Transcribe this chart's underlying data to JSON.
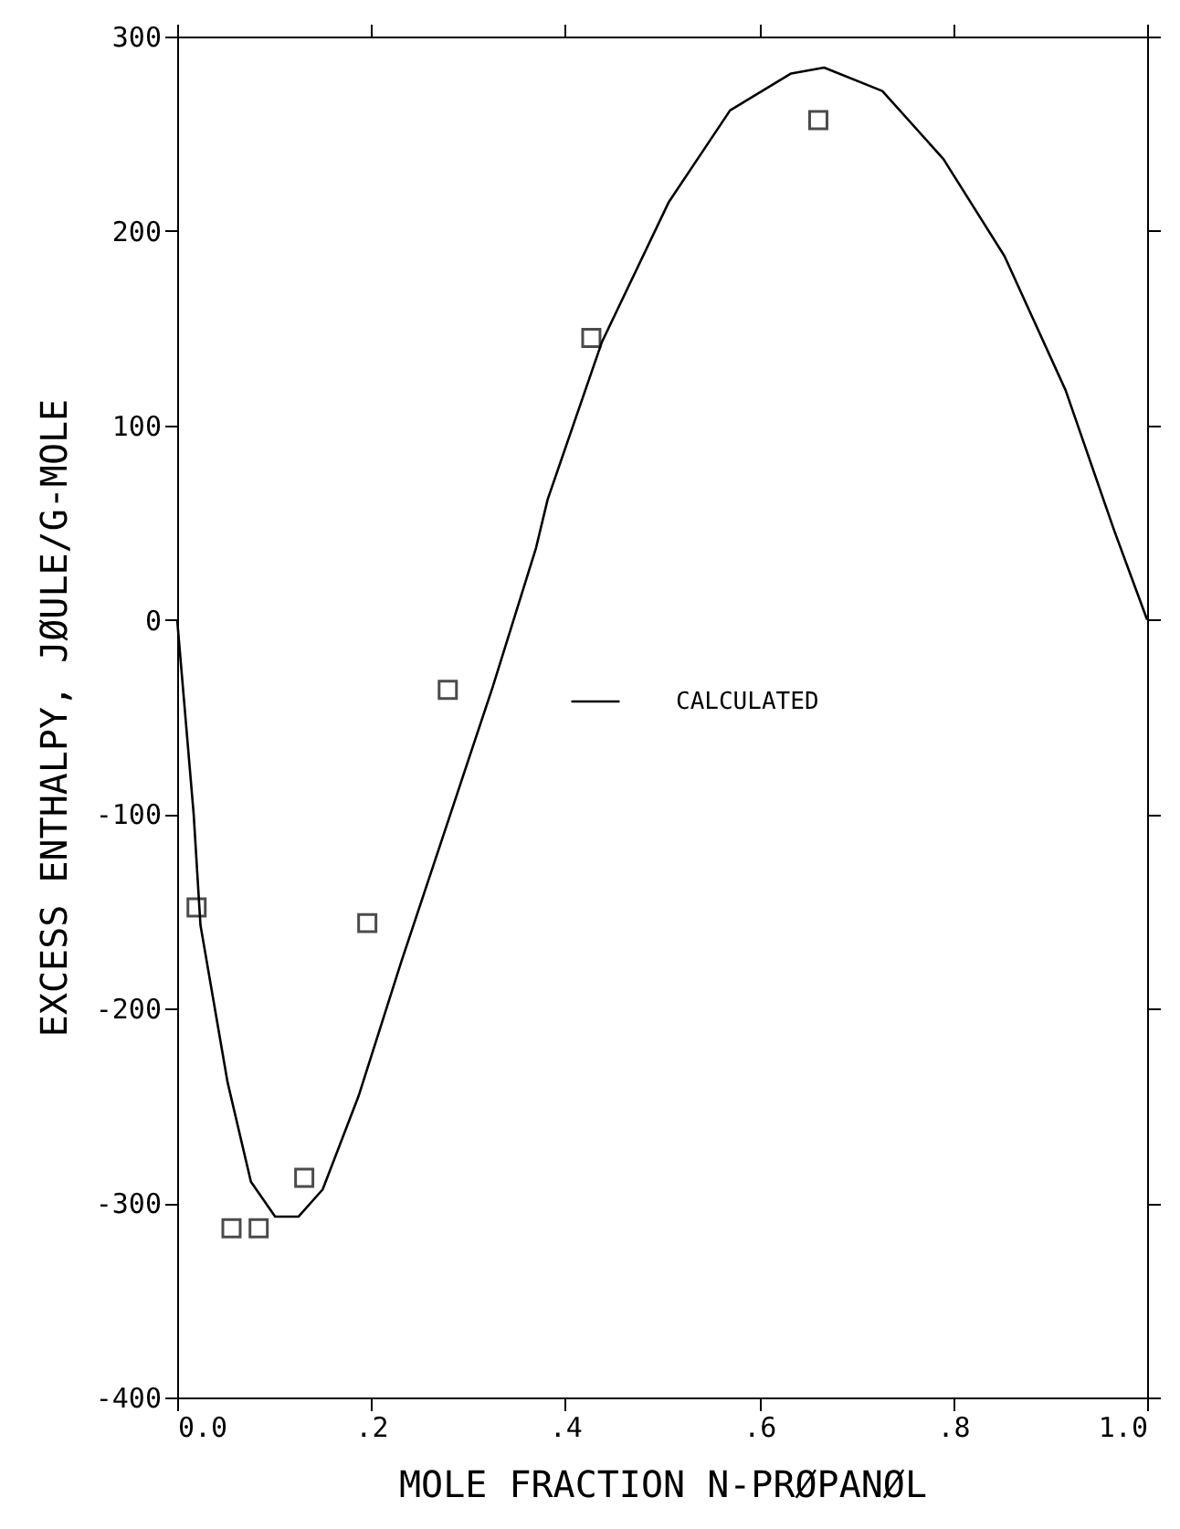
{
  "chart_data": {
    "type": "scatter",
    "xlabel": "MOLE FRACTION N-PRØPANØL",
    "ylabel": "EXCESS ENTHALPY, JØULE/G-MOLE",
    "xlim": [
      0,
      1
    ],
    "ylim": [
      -400,
      300
    ],
    "xticks": [
      {
        "value": 0,
        "label": "0.0"
      },
      {
        "value": 0.2,
        "label": ".2"
      },
      {
        "value": 0.4,
        "label": ".4"
      },
      {
        "value": 0.6,
        "label": ".6"
      },
      {
        "value": 0.8,
        "label": ".8"
      },
      {
        "value": 1,
        "label": "1.0"
      }
    ],
    "yticks": [
      -400,
      -300,
      -200,
      -100,
      0,
      100,
      200,
      300
    ],
    "grid": false,
    "legend": "center",
    "series": [
      {
        "marker": "square",
        "color": "#000000",
        "x": [
          0.02,
          0.056,
          0.084,
          0.131,
          0.196,
          0.279,
          0.427,
          0.661
        ],
        "values": [
          -148,
          -313,
          -313,
          -287,
          -156,
          -36,
          145,
          257
        ]
      },
      {
        "type": "line",
        "name": "CALCULATED",
        "line_style": "solid",
        "color": "#000000",
        "x": [
          0,
          0.017,
          0.024,
          0.052,
          0.076,
          0.101,
          0.125,
          0.15,
          0.187,
          0.231,
          0.281,
          0.325,
          0.37,
          0.382,
          0.438,
          0.507,
          0.57,
          0.633,
          0.667,
          0.727,
          0.79,
          0.853,
          0.916,
          0.966,
          1.0
        ],
        "values": [
          0,
          -100,
          -157,
          -238,
          -289,
          -307,
          -307,
          -293,
          -245,
          -176,
          -101,
          -35,
          37,
          62,
          143,
          215,
          262,
          281,
          284,
          272,
          237,
          187,
          118,
          46,
          0
        ]
      }
    ]
  }
}
